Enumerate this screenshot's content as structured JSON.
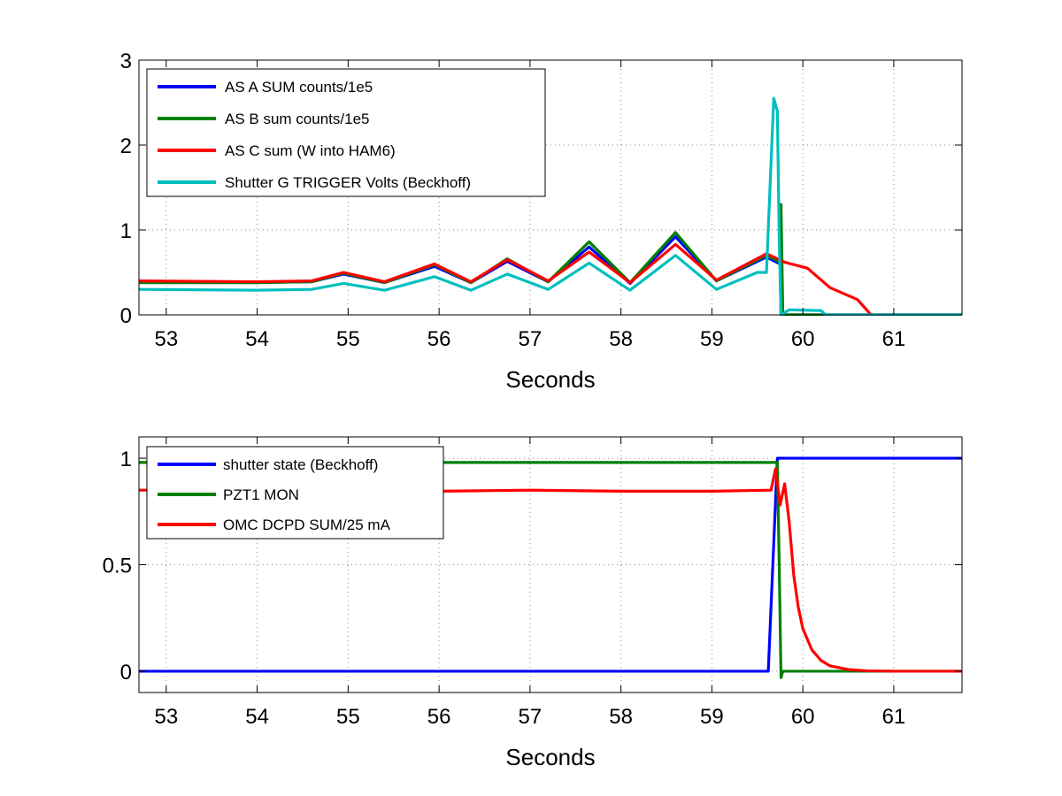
{
  "chart_data": [
    {
      "type": "line",
      "xlabel": "Seconds",
      "ylabel": "",
      "xlim": [
        52.7,
        61.75
      ],
      "ylim": [
        0,
        3
      ],
      "xticks": [
        53,
        54,
        55,
        56,
        57,
        58,
        59,
        60,
        61
      ],
      "yticks": [
        0,
        1,
        2,
        3
      ],
      "grid": true,
      "legend_position": "top-left",
      "series": [
        {
          "name": "AS A SUM counts/1e5",
          "color": "#0000ff",
          "x": [
            52.7,
            54.0,
            54.6,
            54.95,
            55.4,
            55.95,
            56.35,
            56.75,
            57.2,
            57.65,
            58.1,
            58.6,
            59.05,
            59.6,
            59.75,
            59.76,
            61.75
          ],
          "y": [
            0.38,
            0.38,
            0.39,
            0.48,
            0.38,
            0.57,
            0.38,
            0.63,
            0.39,
            0.8,
            0.37,
            0.92,
            0.4,
            0.68,
            0.6,
            0.0,
            0.0
          ]
        },
        {
          "name": "AS B sum counts/1e5",
          "color": "#008000",
          "x": [
            52.7,
            54.0,
            54.6,
            54.95,
            55.4,
            55.95,
            56.35,
            56.75,
            57.2,
            57.65,
            58.1,
            58.6,
            59.05,
            59.6,
            59.75,
            59.76,
            59.78,
            59.8,
            61.75
          ],
          "y": [
            0.38,
            0.38,
            0.39,
            0.49,
            0.38,
            0.59,
            0.38,
            0.66,
            0.39,
            0.86,
            0.38,
            0.97,
            0.4,
            0.7,
            0.62,
            1.3,
            0.0,
            0.0,
            0.0
          ]
        },
        {
          "name": "AS C sum (W into HAM6)",
          "color": "#ff0000",
          "x": [
            52.7,
            54.0,
            54.6,
            54.95,
            55.4,
            55.95,
            56.35,
            56.75,
            57.2,
            57.65,
            58.1,
            58.6,
            59.05,
            59.6,
            59.8,
            60.05,
            60.3,
            60.6,
            60.75,
            61.75
          ],
          "y": [
            0.4,
            0.39,
            0.4,
            0.5,
            0.39,
            0.6,
            0.39,
            0.65,
            0.4,
            0.74,
            0.38,
            0.83,
            0.41,
            0.72,
            0.62,
            0.55,
            0.32,
            0.18,
            0.0,
            0.0
          ]
        },
        {
          "name": "Shutter G TRIGGER Volts (Beckhoff)",
          "color": "#00bfbf",
          "x": [
            52.7,
            54.0,
            54.6,
            54.95,
            55.4,
            55.95,
            56.35,
            56.75,
            57.2,
            57.65,
            58.1,
            58.6,
            59.05,
            59.5,
            59.6,
            59.68,
            59.72,
            59.74,
            59.76,
            59.85,
            60.2,
            60.25,
            61.75
          ],
          "y": [
            0.3,
            0.29,
            0.3,
            0.37,
            0.29,
            0.45,
            0.29,
            0.48,
            0.3,
            0.61,
            0.29,
            0.7,
            0.3,
            0.5,
            0.5,
            2.55,
            2.4,
            0.9,
            0.0,
            0.06,
            0.05,
            0.0,
            0.0
          ]
        }
      ]
    },
    {
      "type": "line",
      "xlabel": "Seconds",
      "ylabel": "",
      "xlim": [
        52.7,
        61.75
      ],
      "ylim": [
        -0.1,
        1.1
      ],
      "xticks": [
        53,
        54,
        55,
        56,
        57,
        58,
        59,
        60,
        61
      ],
      "yticks": [
        0,
        0.5,
        1
      ],
      "ytick_labels": [
        "0",
        "0.5",
        "1"
      ],
      "grid": true,
      "legend_position": "top-left",
      "series": [
        {
          "name": "shutter state (Beckhoff)",
          "color": "#0000ff",
          "x": [
            52.7,
            59.62,
            59.72,
            61.75
          ],
          "y": [
            0.0,
            0.0,
            1.0,
            1.0
          ]
        },
        {
          "name": "PZT1 MON",
          "color": "#008000",
          "x": [
            52.7,
            59.72,
            59.74,
            59.76,
            59.78,
            59.9,
            61.75
          ],
          "y": [
            0.98,
            0.98,
            0.5,
            -0.03,
            0.0,
            0.0,
            0.0
          ]
        },
        {
          "name": "OMC DCPD SUM/25 mA",
          "color": "#ff0000",
          "x": [
            52.7,
            54.0,
            56.0,
            57.0,
            58.0,
            59.0,
            59.65,
            59.7,
            59.75,
            59.8,
            59.85,
            59.9,
            59.95,
            60.0,
            60.1,
            60.2,
            60.3,
            60.5,
            60.7,
            61.0,
            61.75
          ],
          "y": [
            0.85,
            0.85,
            0.845,
            0.85,
            0.845,
            0.845,
            0.85,
            0.95,
            0.78,
            0.88,
            0.7,
            0.45,
            0.3,
            0.2,
            0.1,
            0.05,
            0.025,
            0.008,
            0.002,
            0.0,
            0.0
          ]
        }
      ]
    }
  ]
}
